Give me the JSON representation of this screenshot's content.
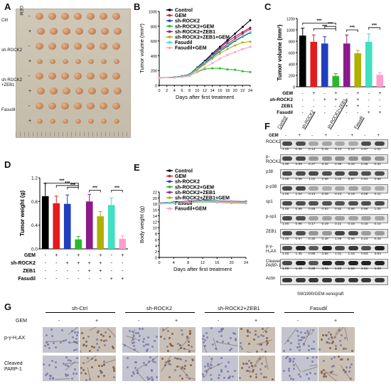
{
  "panels": {
    "a": "A",
    "b": "B",
    "c": "C",
    "d": "D",
    "e": "E",
    "f": "F",
    "g": "G"
  },
  "photo": {
    "gem_label": "GEM",
    "groups": [
      "Ctrl",
      "sh-ROCK2",
      "sh-ROCK2\n+ZEB1",
      "Fasudil"
    ],
    "signs": [
      "-",
      "+",
      "-",
      "+",
      "-",
      "+",
      "-",
      "+"
    ]
  },
  "legend": {
    "items": [
      "Control",
      "GEM",
      "sh-ROCK2",
      "sh-ROCK2+GEM",
      "sh-ROCK2+ZEB1",
      "sh-ROCK2+ZEB1+GEM",
      "Fasudil",
      "Fasudil+GEM"
    ],
    "colors": [
      "#000000",
      "#e41a1c",
      "#1f3fbf",
      "#2ab82a",
      "#8b1a8b",
      "#b0b000",
      "#40e0c0",
      "#ff9ecf"
    ]
  },
  "chart_data": [
    {
      "id": "B",
      "type": "line",
      "xlabel": "Days after first treatment",
      "ylabel": "Tumor volume (mm³)",
      "x": [
        0,
        4,
        6,
        8,
        10,
        12,
        14,
        16,
        18,
        20,
        22,
        24
      ],
      "xticks": [
        0,
        2,
        4,
        6,
        8,
        10,
        12,
        14,
        16,
        18,
        20,
        22,
        24
      ],
      "ylim": [
        0,
        1000
      ],
      "yticks": [
        0,
        200,
        400,
        600,
        800,
        1000
      ],
      "series": [
        {
          "name": "Control",
          "values": [
            100,
            110,
            125,
            150,
            240,
            330,
            430,
            520,
            610,
            700,
            790,
            880
          ]
        },
        {
          "name": "GEM",
          "values": [
            100,
            108,
            120,
            145,
            230,
            310,
            400,
            480,
            560,
            630,
            700,
            760
          ]
        },
        {
          "name": "sh-ROCK2",
          "values": [
            100,
            107,
            118,
            140,
            220,
            300,
            380,
            460,
            530,
            600,
            660,
            710
          ]
        },
        {
          "name": "sh-ROCK2+GEM",
          "values": [
            100,
            105,
            115,
            130,
            180,
            220,
            230,
            230,
            215,
            210,
            190,
            180
          ]
        },
        {
          "name": "sh-ROCK2+ZEB1",
          "values": [
            100,
            108,
            122,
            148,
            235,
            320,
            410,
            500,
            590,
            660,
            720,
            780
          ]
        },
        {
          "name": "sh-ROCK2+ZEB1+GEM",
          "values": [
            100,
            106,
            117,
            138,
            210,
            285,
            360,
            430,
            490,
            540,
            580,
            590
          ]
        },
        {
          "name": "Fasudil",
          "values": [
            100,
            108,
            121,
            145,
            228,
            310,
            395,
            470,
            545,
            610,
            670,
            720
          ]
        },
        {
          "name": "Fasudil+GEM",
          "values": [
            100,
            104,
            112,
            128,
            185,
            240,
            300,
            360,
            410,
            450,
            490,
            520
          ]
        }
      ]
    },
    {
      "id": "C",
      "type": "bar",
      "ylabel": "Tumor volume (mm³)",
      "ylim": [
        0,
        1200
      ],
      "yticks": [
        0,
        200,
        400,
        600,
        800,
        1000,
        1200
      ],
      "values": [
        900,
        790,
        760,
        190,
        760,
        590,
        790,
        210
      ],
      "errors": [
        130,
        120,
        120,
        40,
        150,
        50,
        140,
        40
      ],
      "significance": "***",
      "condition_rows": [
        {
          "label": "GEM",
          "signs": [
            "-",
            "+",
            "-",
            "+",
            "-",
            "+",
            "-",
            "+"
          ]
        },
        {
          "label": "sh-ROCK2",
          "signs": [
            "-",
            "-",
            "+",
            "+",
            "+",
            "+",
            "-",
            "-"
          ]
        },
        {
          "label": "ZEB1",
          "signs": [
            "-",
            "-",
            "-",
            "-",
            "+",
            "+",
            "-",
            "-"
          ]
        },
        {
          "label": "Fasudil",
          "signs": [
            "-",
            "-",
            "-",
            "-",
            "-",
            "-",
            "+",
            "+"
          ]
        }
      ]
    },
    {
      "id": "D",
      "type": "bar",
      "ylabel": "Tumor weight (g)",
      "ylim": [
        0,
        1.2
      ],
      "yticks": [
        0.0,
        0.4,
        0.8,
        1.2
      ],
      "ytick_labels": [
        "0.0",
        "0.4",
        "0.8",
        "1.2"
      ],
      "values": [
        0.89,
        0.77,
        0.76,
        0.16,
        0.8,
        0.55,
        0.74,
        0.17
      ],
      "errors": [
        0.22,
        0.12,
        0.15,
        0.05,
        0.12,
        0.08,
        0.12,
        0.05
      ],
      "significance": "***",
      "condition_rows": [
        {
          "label": "GEM",
          "signs": [
            "-",
            "+",
            "-",
            "+",
            "-",
            "+",
            "-",
            "+"
          ]
        },
        {
          "label": "sh-ROCK2",
          "signs": [
            "-",
            "-",
            "+",
            "+",
            "+",
            "+",
            "-",
            "-"
          ]
        },
        {
          "label": "ZEB1",
          "signs": [
            "-",
            "-",
            "-",
            "-",
            "+",
            "+",
            "-",
            "-"
          ]
        },
        {
          "label": "Fasudil",
          "signs": [
            "-",
            "-",
            "-",
            "-",
            "-",
            "-",
            "+",
            "+"
          ]
        }
      ]
    },
    {
      "id": "E",
      "type": "line",
      "xlabel": "Days after first treatment",
      "ylabel": "Body weight (g)",
      "x": [
        0,
        4,
        8,
        12,
        16,
        20,
        24
      ],
      "xticks": [
        0,
        4,
        8,
        12,
        16,
        20,
        24
      ],
      "ylim": [
        0,
        22
      ],
      "yticks": [
        0,
        2,
        4,
        6,
        8,
        10,
        12,
        14,
        16,
        18,
        20,
        22
      ],
      "series": [
        {
          "name": "Control",
          "values": [
            18.2,
            18.6,
            18.9,
            19.2,
            19.0,
            18.8,
            18.7
          ]
        },
        {
          "name": "GEM",
          "values": [
            18.1,
            18.4,
            18.6,
            18.9,
            18.7,
            18.6,
            18.4
          ]
        },
        {
          "name": "sh-ROCK2",
          "values": [
            18.2,
            18.5,
            18.8,
            19.0,
            18.9,
            18.7,
            18.6
          ]
        },
        {
          "name": "sh-ROCK2+GEM",
          "values": [
            18.0,
            18.3,
            18.4,
            18.7,
            18.5,
            18.3,
            18.2
          ]
        },
        {
          "name": "sh-ROCK2+ZEB1",
          "values": [
            18.3,
            18.6,
            18.9,
            19.3,
            19.1,
            18.9,
            18.8
          ]
        },
        {
          "name": "sh-ROCK2+ZEB1+GEM",
          "values": [
            18.1,
            18.4,
            18.7,
            18.9,
            18.8,
            18.6,
            18.4
          ]
        },
        {
          "name": "Fasudil",
          "values": [
            18.2,
            18.5,
            18.8,
            19.1,
            19.0,
            18.8,
            18.6
          ]
        },
        {
          "name": "Fasudil+GEM",
          "values": [
            18.0,
            18.2,
            18.5,
            18.8,
            18.6,
            18.4,
            18.3
          ]
        }
      ]
    }
  ],
  "blot": {
    "groups": [
      "Control",
      "sh-ROCK2",
      "sh-ROCK2+ZEB1",
      "Fasudil"
    ],
    "gem_label": "GEM",
    "gem_signs": [
      "-",
      "+",
      "-",
      "+",
      "-",
      "+",
      "-",
      "+"
    ],
    "footer": "SW1990/GEM-xenograft",
    "rows": [
      {
        "label": "ROCK2",
        "quant": [
          "1.00",
          "0.96",
          "0.14",
          "0.15",
          "0.13",
          "0.10",
          "0.97",
          "1.01"
        ]
      },
      {
        "label": "p-ROCK2",
        "quant": [
          "1.00",
          "0.99",
          "0.27",
          "0.32",
          "0.36",
          "0.33",
          "0.36",
          "0.31"
        ]
      },
      {
        "label": "p38",
        "quant": [
          "1.00",
          "0.98",
          "1.01",
          "0.96",
          "1.02",
          "0.97",
          "0.94",
          "0.96"
        ]
      },
      {
        "label": "p-p38",
        "quant": [
          "1.00",
          "1.04",
          "0.14",
          "0.08",
          "0.13",
          "0.18",
          "0.08",
          "0.11"
        ]
      },
      {
        "label": "sp1",
        "quant": [
          "1.00",
          "0.96",
          "0.95",
          "0.93",
          "0.92",
          "0.95",
          "0.96",
          "1.00"
        ]
      },
      {
        "label": "p-sp1",
        "quant": [
          "1.00",
          "0.96",
          "0.17",
          "0.19",
          "0.21",
          "0.16",
          "0.15",
          "0.14"
        ]
      },
      {
        "label": "ZEB1",
        "quant": [
          "1.00",
          "0.97",
          "0.30",
          "0.28",
          "1.06",
          "0.98",
          "0.23",
          "0.25"
        ]
      },
      {
        "label": "p-γ-H₂AX",
        "quant": [
          "1.00",
          "1.35",
          "0.85",
          "3.56",
          "1.01",
          "1.15",
          "0.93",
          "3.63"
        ]
      },
      {
        "label": "Cleaved\nPARP-1",
        "quant": [
          "1.00",
          "1.49",
          "0.89",
          "4.84",
          "1.22",
          "1.63",
          "1.61",
          "4.83"
        ]
      },
      {
        "label": "Actin",
        "quant": []
      }
    ]
  },
  "ihc": {
    "groups": [
      "sh-Ctrl",
      "sh-ROCK2",
      "sh-ROCK2+ZEB1",
      "Fasudil"
    ],
    "gem_label": "GEM",
    "signs": [
      "-",
      "+",
      "-",
      "+",
      "-",
      "+",
      "-",
      "+"
    ],
    "rows": [
      "p-γ-H₂AX",
      "Cleaved\nPARP-1"
    ]
  }
}
